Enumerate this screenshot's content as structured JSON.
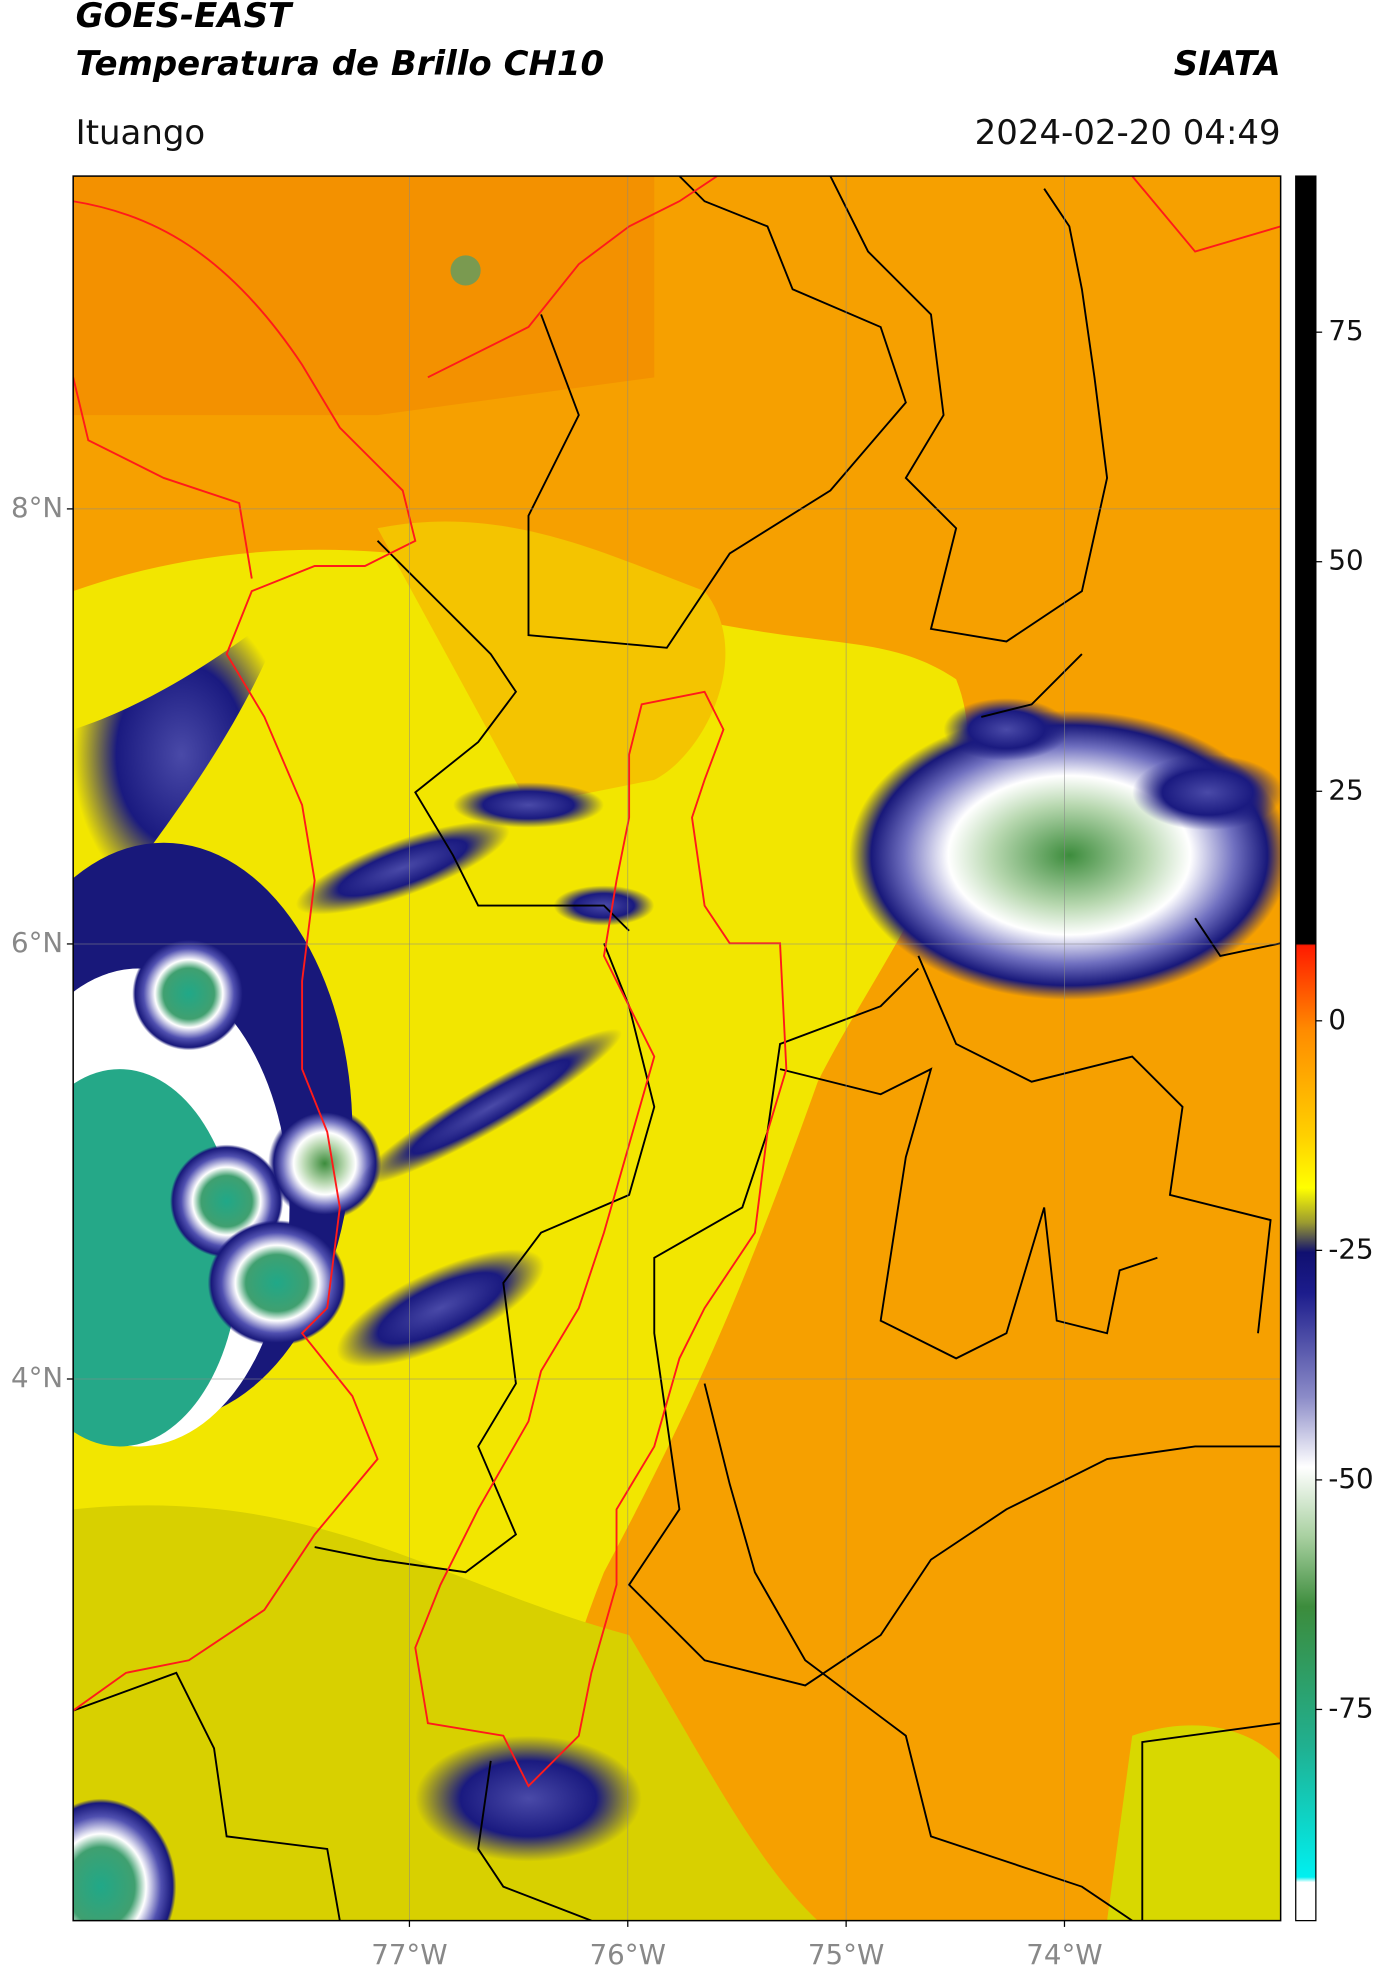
{
  "header": {
    "satellite": "GOES-EAST",
    "product": "Temperatura de Brillo CH10",
    "source": "SIATA",
    "location": "Ituango",
    "datetime": "2024-02-20 04:49"
  },
  "map": {
    "xlim": [
      -78.54,
      -73.01
    ],
    "ylim": [
      1.51,
      9.53
    ],
    "xticks": [
      {
        "value": -77,
        "label": "77°W"
      },
      {
        "value": -76,
        "label": "76°W"
      },
      {
        "value": -75,
        "label": "75°W"
      },
      {
        "value": -74,
        "label": "74°W"
      }
    ],
    "yticks": [
      {
        "value": 8,
        "label": "8°N"
      },
      {
        "value": 6,
        "label": "6°N"
      },
      {
        "value": 4,
        "label": "4°N"
      }
    ],
    "grid": true
  },
  "colorbar": {
    "ylim": [
      -98,
      92
    ],
    "yticks": [
      75,
      50,
      25,
      0,
      -25,
      -50,
      -75
    ]
  }
}
